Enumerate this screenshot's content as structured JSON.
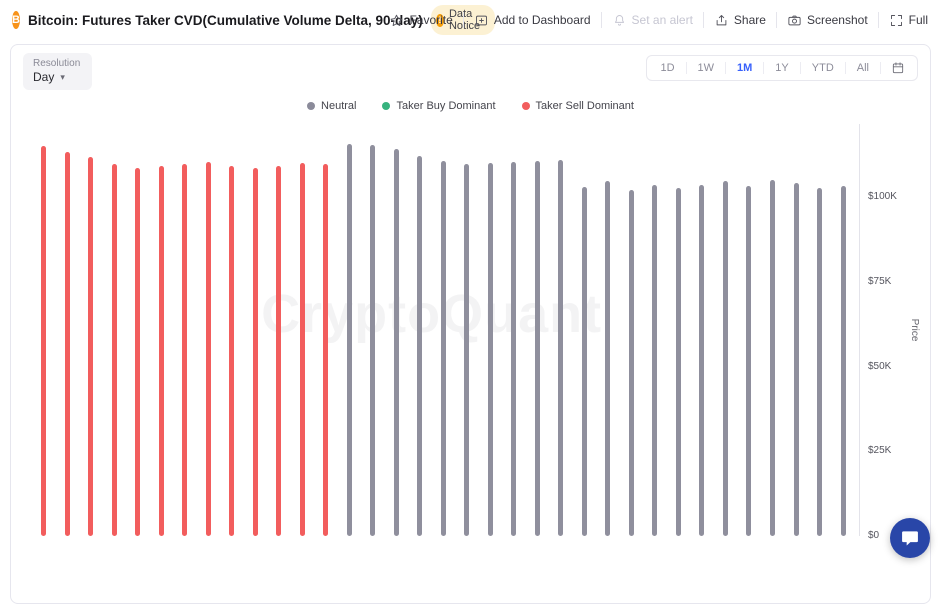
{
  "header": {
    "title": "Bitcoin: Futures Taker CVD(Cumulative Volume Delta, 90-day)",
    "data_notice": {
      "label": "Data Notice"
    },
    "actions": {
      "favorite": "Favorite",
      "add_to_dashboard": "Add to Dashboard",
      "set_alert": "Set an alert",
      "share": "Share",
      "screenshot": "Screenshot",
      "full": "Full"
    }
  },
  "icons": {
    "bitcoin": "B",
    "notice": "!",
    "caret_down": "▾"
  },
  "toolbar": {
    "resolution_label": "Resolution",
    "resolution_value": "Day",
    "ranges": [
      "1D",
      "1W",
      "1M",
      "1Y",
      "YTD",
      "All"
    ],
    "active_range": "1M"
  },
  "legend": {
    "items": [
      {
        "key": "neutral",
        "label": "Neutral",
        "color": "#8b8b9a"
      },
      {
        "key": "taker_buy",
        "label": "Taker Buy Dominant",
        "color": "#36b37e"
      },
      {
        "key": "taker_sell",
        "label": "Taker Sell Dominant",
        "color": "#f25d5d"
      }
    ]
  },
  "watermark": "CryptoQuant",
  "colors": {
    "accent_blue": "#3861fb",
    "bitcoin_orange": "#f7931a",
    "notice_bg": "#fcf1d3",
    "chat_bubble": "#2946a8"
  },
  "chart_data": {
    "type": "bar",
    "title": "Bitcoin: Futures Taker CVD(Cumulative Volume Delta, 90-day)",
    "ylabel": "Price",
    "ylim": [
      0,
      121000
    ],
    "grid": false,
    "legend_position": "top",
    "yticks": [
      {
        "label": "$0",
        "value": 0
      },
      {
        "label": "$25K",
        "value": 25000
      },
      {
        "label": "$50K",
        "value": 50000
      },
      {
        "label": "$75K",
        "value": 75000
      },
      {
        "label": "$100K",
        "value": 100000
      }
    ],
    "series_colors": {
      "neutral": "#8f8f9d",
      "taker_buy": "#36b37e",
      "taker_sell": "#f25d5d"
    },
    "bars": [
      {
        "value": 115000,
        "category": "taker_sell"
      },
      {
        "value": 113200,
        "category": "taker_sell"
      },
      {
        "value": 111800,
        "category": "taker_sell"
      },
      {
        "value": 109600,
        "category": "taker_sell"
      },
      {
        "value": 108600,
        "category": "taker_sell"
      },
      {
        "value": 109000,
        "category": "taker_sell"
      },
      {
        "value": 109600,
        "category": "taker_sell"
      },
      {
        "value": 110200,
        "category": "taker_sell"
      },
      {
        "value": 109200,
        "category": "taker_sell"
      },
      {
        "value": 108600,
        "category": "taker_sell"
      },
      {
        "value": 109200,
        "category": "taker_sell"
      },
      {
        "value": 110000,
        "category": "taker_sell"
      },
      {
        "value": 109600,
        "category": "taker_sell"
      },
      {
        "value": 115600,
        "category": "neutral"
      },
      {
        "value": 115200,
        "category": "neutral"
      },
      {
        "value": 114200,
        "category": "neutral"
      },
      {
        "value": 112200,
        "category": "neutral"
      },
      {
        "value": 110600,
        "category": "neutral"
      },
      {
        "value": 109600,
        "category": "neutral"
      },
      {
        "value": 110000,
        "category": "neutral"
      },
      {
        "value": 110200,
        "category": "neutral"
      },
      {
        "value": 110600,
        "category": "neutral"
      },
      {
        "value": 111000,
        "category": "neutral"
      },
      {
        "value": 103000,
        "category": "neutral"
      },
      {
        "value": 104600,
        "category": "neutral"
      },
      {
        "value": 102200,
        "category": "neutral"
      },
      {
        "value": 103600,
        "category": "neutral"
      },
      {
        "value": 102600,
        "category": "neutral"
      },
      {
        "value": 103600,
        "category": "neutral"
      },
      {
        "value": 104600,
        "category": "neutral"
      },
      {
        "value": 103200,
        "category": "neutral"
      },
      {
        "value": 105000,
        "category": "neutral"
      },
      {
        "value": 104200,
        "category": "neutral"
      },
      {
        "value": 102600,
        "category": "neutral"
      },
      {
        "value": 103200,
        "category": "neutral"
      }
    ]
  }
}
